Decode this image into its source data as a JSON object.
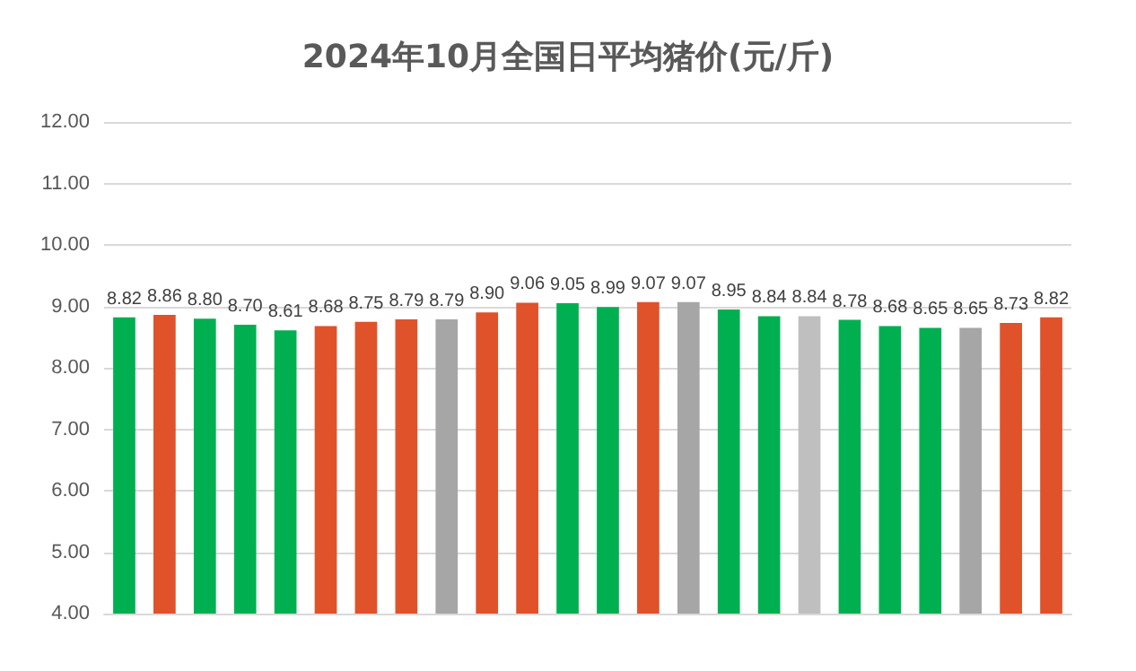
{
  "chart_data": {
    "type": "bar",
    "title": "2024年10月全国日平均猪价(元/斤)",
    "categories": [
      null,
      null,
      null,
      null,
      null,
      null,
      null,
      null,
      null,
      null,
      null,
      null,
      null,
      null,
      null,
      null,
      null,
      null,
      null,
      null,
      null,
      null,
      null,
      null
    ],
    "values": [
      8.82,
      8.86,
      8.8,
      8.7,
      8.61,
      8.68,
      8.75,
      8.79,
      8.79,
      8.9,
      9.06,
      9.05,
      8.99,
      9.07,
      9.07,
      8.95,
      8.84,
      8.84,
      8.78,
      8.68,
      8.65,
      8.65,
      8.73,
      8.82
    ],
    "value_labels": [
      "8.82",
      "8.86",
      "8.80",
      "8.70",
      "8.61",
      "8.68",
      "8.75",
      "8.79",
      "8.79",
      "8.90",
      "9.06",
      "9.05",
      "8.99",
      "9.07",
      "9.07",
      "8.95",
      "8.84",
      "8.84",
      "8.78",
      "8.68",
      "8.65",
      "8.65",
      "8.73",
      "8.82"
    ],
    "colors": [
      "#00b050",
      "#e0522a",
      "#00b050",
      "#00b050",
      "#00b050",
      "#e0522a",
      "#e0522a",
      "#e0522a",
      "#a6a6a6",
      "#e0522a",
      "#e0522a",
      "#00b050",
      "#00b050",
      "#e0522a",
      "#a6a6a6",
      "#00b050",
      "#00b050",
      "#bfbfbf",
      "#00b050",
      "#00b050",
      "#00b050",
      "#a6a6a6",
      "#e0522a",
      "#e0522a"
    ],
    "ylim": [
      4,
      12
    ],
    "yticks": [
      {
        "value": 4,
        "label": "4.00"
      },
      {
        "value": 5,
        "label": "5.00"
      },
      {
        "value": 6,
        "label": "6.00"
      },
      {
        "value": 7,
        "label": "7.00"
      },
      {
        "value": 8,
        "label": "8.00"
      },
      {
        "value": 9,
        "label": "9.00"
      },
      {
        "value": 10,
        "label": "10.00"
      },
      {
        "value": 11,
        "label": "11.00"
      },
      {
        "value": 12,
        "label": "12.00"
      }
    ],
    "grid": "y"
  }
}
